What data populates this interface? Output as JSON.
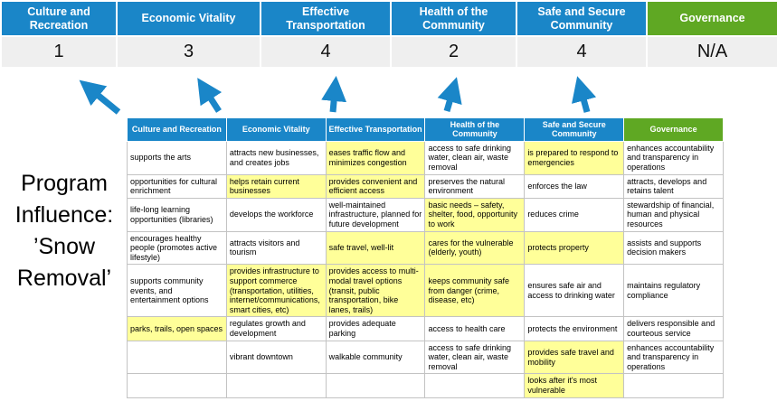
{
  "title": "Program\nInfluence:\n’Snow\nRemoval’",
  "colors": {
    "blue": "#1a86c8",
    "green": "#5fa823",
    "yellow": "#ffff99",
    "score_bg": "#efefef"
  },
  "summary": {
    "columns": [
      {
        "label": "Culture and Recreation",
        "score": "1"
      },
      {
        "label": "Economic Vitality",
        "score": "3"
      },
      {
        "label": "Effective Transportation",
        "score": "4"
      },
      {
        "label": "Health of the Community",
        "score": "2"
      },
      {
        "label": "Safe and Secure Community",
        "score": "4"
      },
      {
        "label": "Governance",
        "score": "N/A"
      }
    ]
  },
  "matrix": {
    "headers": [
      "Culture and Recreation",
      "Economic Vitality",
      "Effective Transportation",
      "Health of the Community",
      "Safe and Secure Community",
      "Governance"
    ],
    "rows": [
      [
        {
          "text": "supports the arts",
          "highlight": false
        },
        {
          "text": "attracts new businesses, and creates jobs",
          "highlight": false
        },
        {
          "text": "eases traffic flow and minimizes congestion",
          "highlight": true
        },
        {
          "text": "access to safe drinking water, clean air, waste removal",
          "highlight": false
        },
        {
          "text": "is prepared to respond to emergencies",
          "highlight": true
        },
        {
          "text": "enhances accountability and transparency in operations",
          "highlight": false
        }
      ],
      [
        {
          "text": "opportunities for cultural enrichment",
          "highlight": false
        },
        {
          "text": "helps retain current businesses",
          "highlight": true
        },
        {
          "text": "provides convenient and efficient access",
          "highlight": true
        },
        {
          "text": "preserves the natural environment",
          "highlight": false
        },
        {
          "text": "enforces the law",
          "highlight": false
        },
        {
          "text": "attracts, develops and retains talent",
          "highlight": false
        }
      ],
      [
        {
          "text": "life-long learning opportunities (libraries)",
          "highlight": false
        },
        {
          "text": "develops the workforce",
          "highlight": false
        },
        {
          "text": "well-maintained infrastructure, planned for future development",
          "highlight": false
        },
        {
          "text": "basic needs – safety, shelter, food, opportunity to work",
          "highlight": true
        },
        {
          "text": "reduces crime",
          "highlight": false
        },
        {
          "text": "stewardship of financial, human and physical resources",
          "highlight": false
        }
      ],
      [
        {
          "text": "encourages healthy people (promotes active lifestyle)",
          "highlight": false
        },
        {
          "text": "attracts visitors and tourism",
          "highlight": false
        },
        {
          "text": "safe travel, well-lit",
          "highlight": true
        },
        {
          "text": "cares for the vulnerable (elderly, youth)",
          "highlight": true
        },
        {
          "text": "protects property",
          "highlight": true
        },
        {
          "text": "assists and supports decision makers",
          "highlight": false
        }
      ],
      [
        {
          "text": "supports community events, and entertainment options",
          "highlight": false
        },
        {
          "text": "provides infrastructure to support commerce (transportation, utilities, internet/communications, smart cities, etc)",
          "highlight": true
        },
        {
          "text": "provides access to multi-modal travel options (transit, public transportation, bike lanes, trails)",
          "highlight": true
        },
        {
          "text": "keeps community safe from danger (crime, disease, etc)",
          "highlight": true
        },
        {
          "text": "ensures safe air and access to drinking water",
          "highlight": false
        },
        {
          "text": "maintains regulatory compliance",
          "highlight": false
        }
      ],
      [
        {
          "text": "parks, trails, open spaces",
          "highlight": true
        },
        {
          "text": "regulates growth and development",
          "highlight": false
        },
        {
          "text": "provides adequate parking",
          "highlight": false
        },
        {
          "text": "access to health care",
          "highlight": false
        },
        {
          "text": "protects the environment",
          "highlight": false
        },
        {
          "text": "delivers responsible and courteous service",
          "highlight": false
        }
      ],
      [
        {
          "text": "",
          "highlight": false
        },
        {
          "text": "vibrant downtown",
          "highlight": false
        },
        {
          "text": "walkable community",
          "highlight": false
        },
        {
          "text": "access to safe drinking water, clean air, waste removal",
          "highlight": false
        },
        {
          "text": "provides safe travel and mobility",
          "highlight": true
        },
        {
          "text": "enhances accountability and transparency in operations",
          "highlight": false
        }
      ],
      [
        {
          "text": "",
          "highlight": false
        },
        {
          "text": "",
          "highlight": false
        },
        {
          "text": "",
          "highlight": false
        },
        {
          "text": "",
          "highlight": false
        },
        {
          "text": "looks after it's most vulnerable",
          "highlight": true
        },
        {
          "text": "",
          "highlight": false
        }
      ]
    ]
  }
}
